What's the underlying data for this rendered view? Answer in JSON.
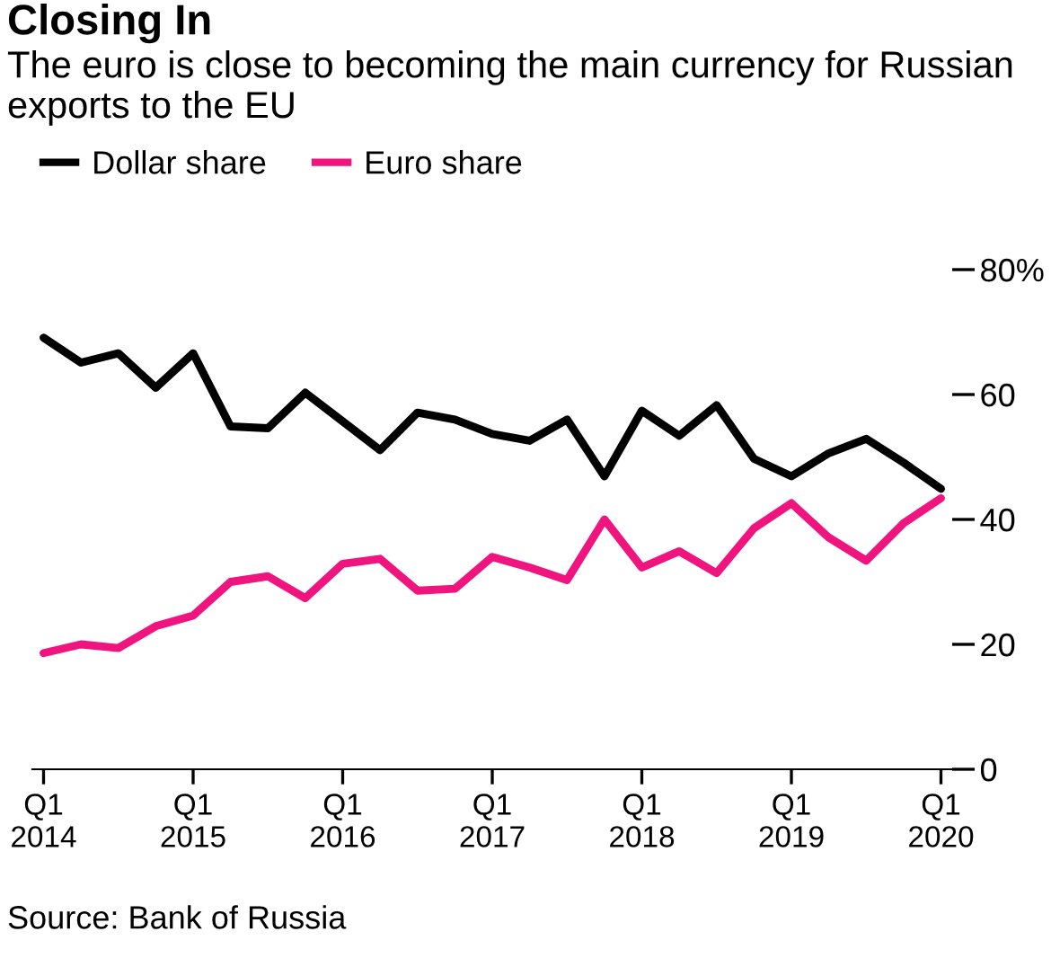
{
  "chart_data": {
    "type": "line",
    "title": "Closing In",
    "subtitle": "The euro is close to becoming the main currency for Russian exports to the EU",
    "categories": [
      "Q1\n2014",
      null,
      null,
      null,
      "Q1\n2015",
      null,
      null,
      null,
      "Q1\n2016",
      null,
      null,
      null,
      "Q1\n2017",
      null,
      null,
      null,
      "Q1\n2018",
      null,
      null,
      null,
      "Q1\n2019",
      null,
      null,
      null,
      "Q1\n2020"
    ],
    "series": [
      {
        "name": "Dollar share",
        "color": "#000000",
        "values": [
          69.1,
          65.1,
          66.6,
          61.1,
          66.6,
          54.9,
          54.6,
          60.3,
          55.7,
          51.1,
          57.1,
          56,
          53.7,
          52.6,
          56,
          46.9,
          57.4,
          53.4,
          58.3,
          49.7,
          46.9,
          50.6,
          52.9,
          49.1,
          44.9
        ]
      },
      {
        "name": "Euro share",
        "color": "#f0147f",
        "values": [
          18.6,
          20,
          19.4,
          22.9,
          24.6,
          30,
          30.9,
          27.4,
          32.9,
          33.7,
          28.6,
          28.9,
          34,
          32.3,
          30.3,
          40,
          32.3,
          34.9,
          31.4,
          38.6,
          42.6,
          37.1,
          33.4,
          39.4,
          43.4
        ]
      }
    ],
    "ylim": [
      0,
      80
    ],
    "yticks": [
      0,
      20,
      40,
      60,
      {
        "value": 80,
        "label": "80%"
      }
    ],
    "grid": false,
    "legend": "top left",
    "line_style": "solid",
    "marker": "none",
    "annotations": [
      "Source: Bank of Russia"
    ]
  }
}
